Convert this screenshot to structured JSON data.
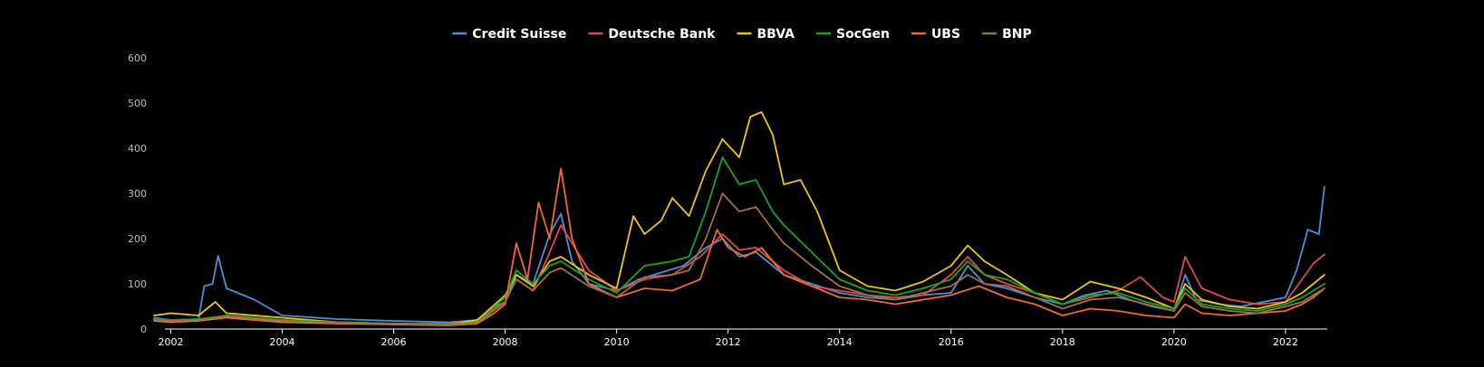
{
  "chart_data": {
    "type": "line",
    "title": "",
    "xlabel": "",
    "ylabel": "",
    "xlim": [
      2001.7,
      2022.75
    ],
    "ylim": [
      0,
      600
    ],
    "y_ticks": [
      0,
      100,
      200,
      300,
      400,
      500,
      600
    ],
    "y_tick_labels": [
      "0",
      "100",
      "200",
      "300",
      "400",
      "500",
      "600"
    ],
    "x_ticks": [
      2002,
      2004,
      2006,
      2008,
      2010,
      2012,
      2014,
      2016,
      2018,
      2020,
      2022
    ],
    "x_tick_labels": [
      "2002",
      "2004",
      "2006",
      "2008",
      "2010",
      "2012",
      "2014",
      "2016",
      "2018",
      "2020",
      "2022"
    ],
    "grid": false,
    "legend_position": "top-center",
    "series": [
      {
        "name": "Credit Suisse",
        "color": "#4a90d9",
        "x": [
          2001.7,
          2002.0,
          2002.5,
          2002.6,
          2002.75,
          2002.85,
          2003.0,
          2003.5,
          2004.0,
          2005.0,
          2006.0,
          2007.0,
          2007.5,
          2007.75,
          2008.0,
          2008.2,
          2008.5,
          2008.8,
          2009.0,
          2009.2,
          2009.5,
          2010.0,
          2010.4,
          2010.8,
          2011.2,
          2011.6,
          2011.9,
          2012.2,
          2012.5,
          2012.8,
          2013.0,
          2013.5,
          2014.0,
          2014.5,
          2015.0,
          2015.5,
          2016.0,
          2016.3,
          2016.6,
          2017.0,
          2017.5,
          2018.0,
          2018.4,
          2018.8,
          2019.2,
          2019.6,
          2020.0,
          2020.2,
          2020.4,
          2020.8,
          2021.2,
          2021.6,
          2022.0,
          2022.2,
          2022.4,
          2022.6,
          2022.7
        ],
        "values": [
          25,
          20,
          22,
          95,
          100,
          162,
          90,
          65,
          30,
          22,
          18,
          15,
          20,
          45,
          60,
          120,
          100,
          210,
          255,
          150,
          100,
          85,
          110,
          125,
          140,
          180,
          200,
          160,
          170,
          140,
          120,
          100,
          80,
          70,
          65,
          75,
          80,
          140,
          100,
          90,
          70,
          55,
          75,
          85,
          65,
          50,
          40,
          120,
          65,
          55,
          50,
          60,
          70,
          130,
          220,
          210,
          315
        ]
      },
      {
        "name": "Deutsche Bank",
        "color": "#e04a4a",
        "x": [
          2001.7,
          2002.0,
          2002.5,
          2003.0,
          2004.0,
          2005.0,
          2006.0,
          2007.0,
          2007.5,
          2008.0,
          2008.2,
          2008.5,
          2008.8,
          2009.0,
          2009.5,
          2010.0,
          2010.5,
          2011.0,
          2011.5,
          2011.9,
          2012.2,
          2012.5,
          2013.0,
          2013.5,
          2014.0,
          2014.5,
          2015.0,
          2015.5,
          2016.0,
          2016.3,
          2016.6,
          2017.0,
          2017.5,
          2018.0,
          2018.5,
          2019.0,
          2019.4,
          2019.8,
          2020.0,
          2020.2,
          2020.5,
          2021.0,
          2021.5,
          2022.0,
          2022.3,
          2022.5,
          2022.7
        ],
        "values": [
          20,
          18,
          20,
          30,
          20,
          15,
          12,
          12,
          18,
          60,
          110,
          85,
          170,
          230,
          130,
          85,
          110,
          120,
          160,
          210,
          175,
          180,
          130,
          95,
          85,
          75,
          70,
          75,
          120,
          160,
          120,
          100,
          80,
          55,
          70,
          85,
          115,
          70,
          60,
          160,
          90,
          65,
          55,
          60,
          110,
          145,
          165
        ]
      },
      {
        "name": "BBVA",
        "color": "#f0c419",
        "x": [
          2001.7,
          2002.0,
          2002.5,
          2002.8,
          2003.0,
          2004.0,
          2005.0,
          2006.0,
          2007.0,
          2007.5,
          2008.0,
          2008.2,
          2008.5,
          2008.8,
          2009.0,
          2009.5,
          2010.0,
          2010.3,
          2010.5,
          2010.8,
          2011.0,
          2011.3,
          2011.6,
          2011.9,
          2012.2,
          2012.4,
          2012.6,
          2012.8,
          2013.0,
          2013.3,
          2013.6,
          2014.0,
          2014.5,
          2015.0,
          2015.5,
          2016.0,
          2016.3,
          2016.6,
          2017.0,
          2017.5,
          2018.0,
          2018.5,
          2019.0,
          2019.5,
          2020.0,
          2020.2,
          2020.5,
          2021.0,
          2021.5,
          2022.0,
          2022.3,
          2022.5,
          2022.7
        ],
        "values": [
          30,
          35,
          30,
          60,
          35,
          25,
          15,
          12,
          10,
          20,
          75,
          120,
          95,
          150,
          160,
          120,
          90,
          250,
          210,
          240,
          290,
          250,
          350,
          420,
          380,
          470,
          480,
          430,
          320,
          330,
          260,
          130,
          95,
          85,
          105,
          140,
          185,
          150,
          120,
          80,
          65,
          105,
          90,
          70,
          45,
          100,
          65,
          50,
          45,
          60,
          80,
          100,
          120
        ]
      },
      {
        "name": "SocGen",
        "color": "#1aa51a",
        "x": [
          2001.7,
          2002.0,
          2002.5,
          2003.0,
          2004.0,
          2005.0,
          2006.0,
          2007.0,
          2007.5,
          2008.0,
          2008.2,
          2008.5,
          2008.8,
          2009.0,
          2009.5,
          2010.0,
          2010.5,
          2011.0,
          2011.3,
          2011.6,
          2011.9,
          2012.2,
          2012.5,
          2012.8,
          2013.0,
          2013.5,
          2014.0,
          2014.5,
          2015.0,
          2015.5,
          2016.0,
          2016.3,
          2016.6,
          2017.0,
          2017.5,
          2018.0,
          2018.5,
          2019.0,
          2019.5,
          2020.0,
          2020.2,
          2020.5,
          2021.0,
          2021.5,
          2022.0,
          2022.3,
          2022.5,
          2022.7
        ],
        "values": [
          22,
          20,
          22,
          30,
          20,
          15,
          12,
          10,
          15,
          70,
          130,
          100,
          140,
          150,
          110,
          80,
          140,
          150,
          160,
          260,
          380,
          320,
          330,
          260,
          230,
          170,
          110,
          85,
          75,
          90,
          110,
          150,
          120,
          110,
          80,
          55,
          75,
          80,
          60,
          45,
          90,
          55,
          45,
          40,
          55,
          70,
          85,
          100
        ]
      },
      {
        "name": "UBS",
        "color": "#f26b2b",
        "x": [
          2001.7,
          2002.0,
          2002.5,
          2003.0,
          2004.0,
          2005.0,
          2006.0,
          2007.0,
          2007.5,
          2007.8,
          2008.0,
          2008.2,
          2008.4,
          2008.6,
          2008.8,
          2009.0,
          2009.2,
          2009.5,
          2010.0,
          2010.5,
          2011.0,
          2011.5,
          2011.8,
          2012.0,
          2012.3,
          2012.6,
          2013.0,
          2013.5,
          2014.0,
          2014.5,
          2015.0,
          2015.5,
          2016.0,
          2016.5,
          2017.0,
          2017.5,
          2018.0,
          2018.5,
          2019.0,
          2019.5,
          2020.0,
          2020.2,
          2020.5,
          2021.0,
          2021.5,
          2022.0,
          2022.3,
          2022.5,
          2022.7
        ],
        "values": [
          18,
          15,
          18,
          25,
          15,
          12,
          10,
          8,
          12,
          35,
          55,
          190,
          110,
          280,
          200,
          355,
          200,
          100,
          70,
          90,
          85,
          110,
          220,
          180,
          160,
          180,
          120,
          95,
          70,
          65,
          55,
          65,
          75,
          95,
          70,
          55,
          30,
          45,
          40,
          30,
          25,
          55,
          35,
          30,
          35,
          40,
          55,
          70,
          90
        ]
      },
      {
        "name": "BNP",
        "color": "#a0704a",
        "x": [
          2001.7,
          2002.0,
          2002.5,
          2003.0,
          2004.0,
          2005.0,
          2006.0,
          2007.0,
          2007.5,
          2008.0,
          2008.2,
          2008.5,
          2008.8,
          2009.0,
          2009.5,
          2010.0,
          2010.5,
          2011.0,
          2011.3,
          2011.6,
          2011.9,
          2012.2,
          2012.5,
          2012.8,
          2013.0,
          2013.5,
          2014.0,
          2014.5,
          2015.0,
          2015.5,
          2016.0,
          2016.3,
          2016.6,
          2017.0,
          2017.5,
          2018.0,
          2018.5,
          2019.0,
          2019.5,
          2020.0,
          2020.2,
          2020.5,
          2021.0,
          2021.5,
          2022.0,
          2022.3,
          2022.5,
          2022.7
        ],
        "values": [
          20,
          18,
          20,
          28,
          18,
          14,
          11,
          9,
          14,
          60,
          110,
          85,
          125,
          135,
          95,
          70,
          115,
          120,
          130,
          200,
          300,
          260,
          270,
          220,
          190,
          140,
          95,
          75,
          65,
          80,
          95,
          120,
          100,
          95,
          70,
          45,
          65,
          70,
          55,
          40,
          80,
          50,
          40,
          35,
          50,
          60,
          75,
          90
        ]
      }
    ]
  }
}
